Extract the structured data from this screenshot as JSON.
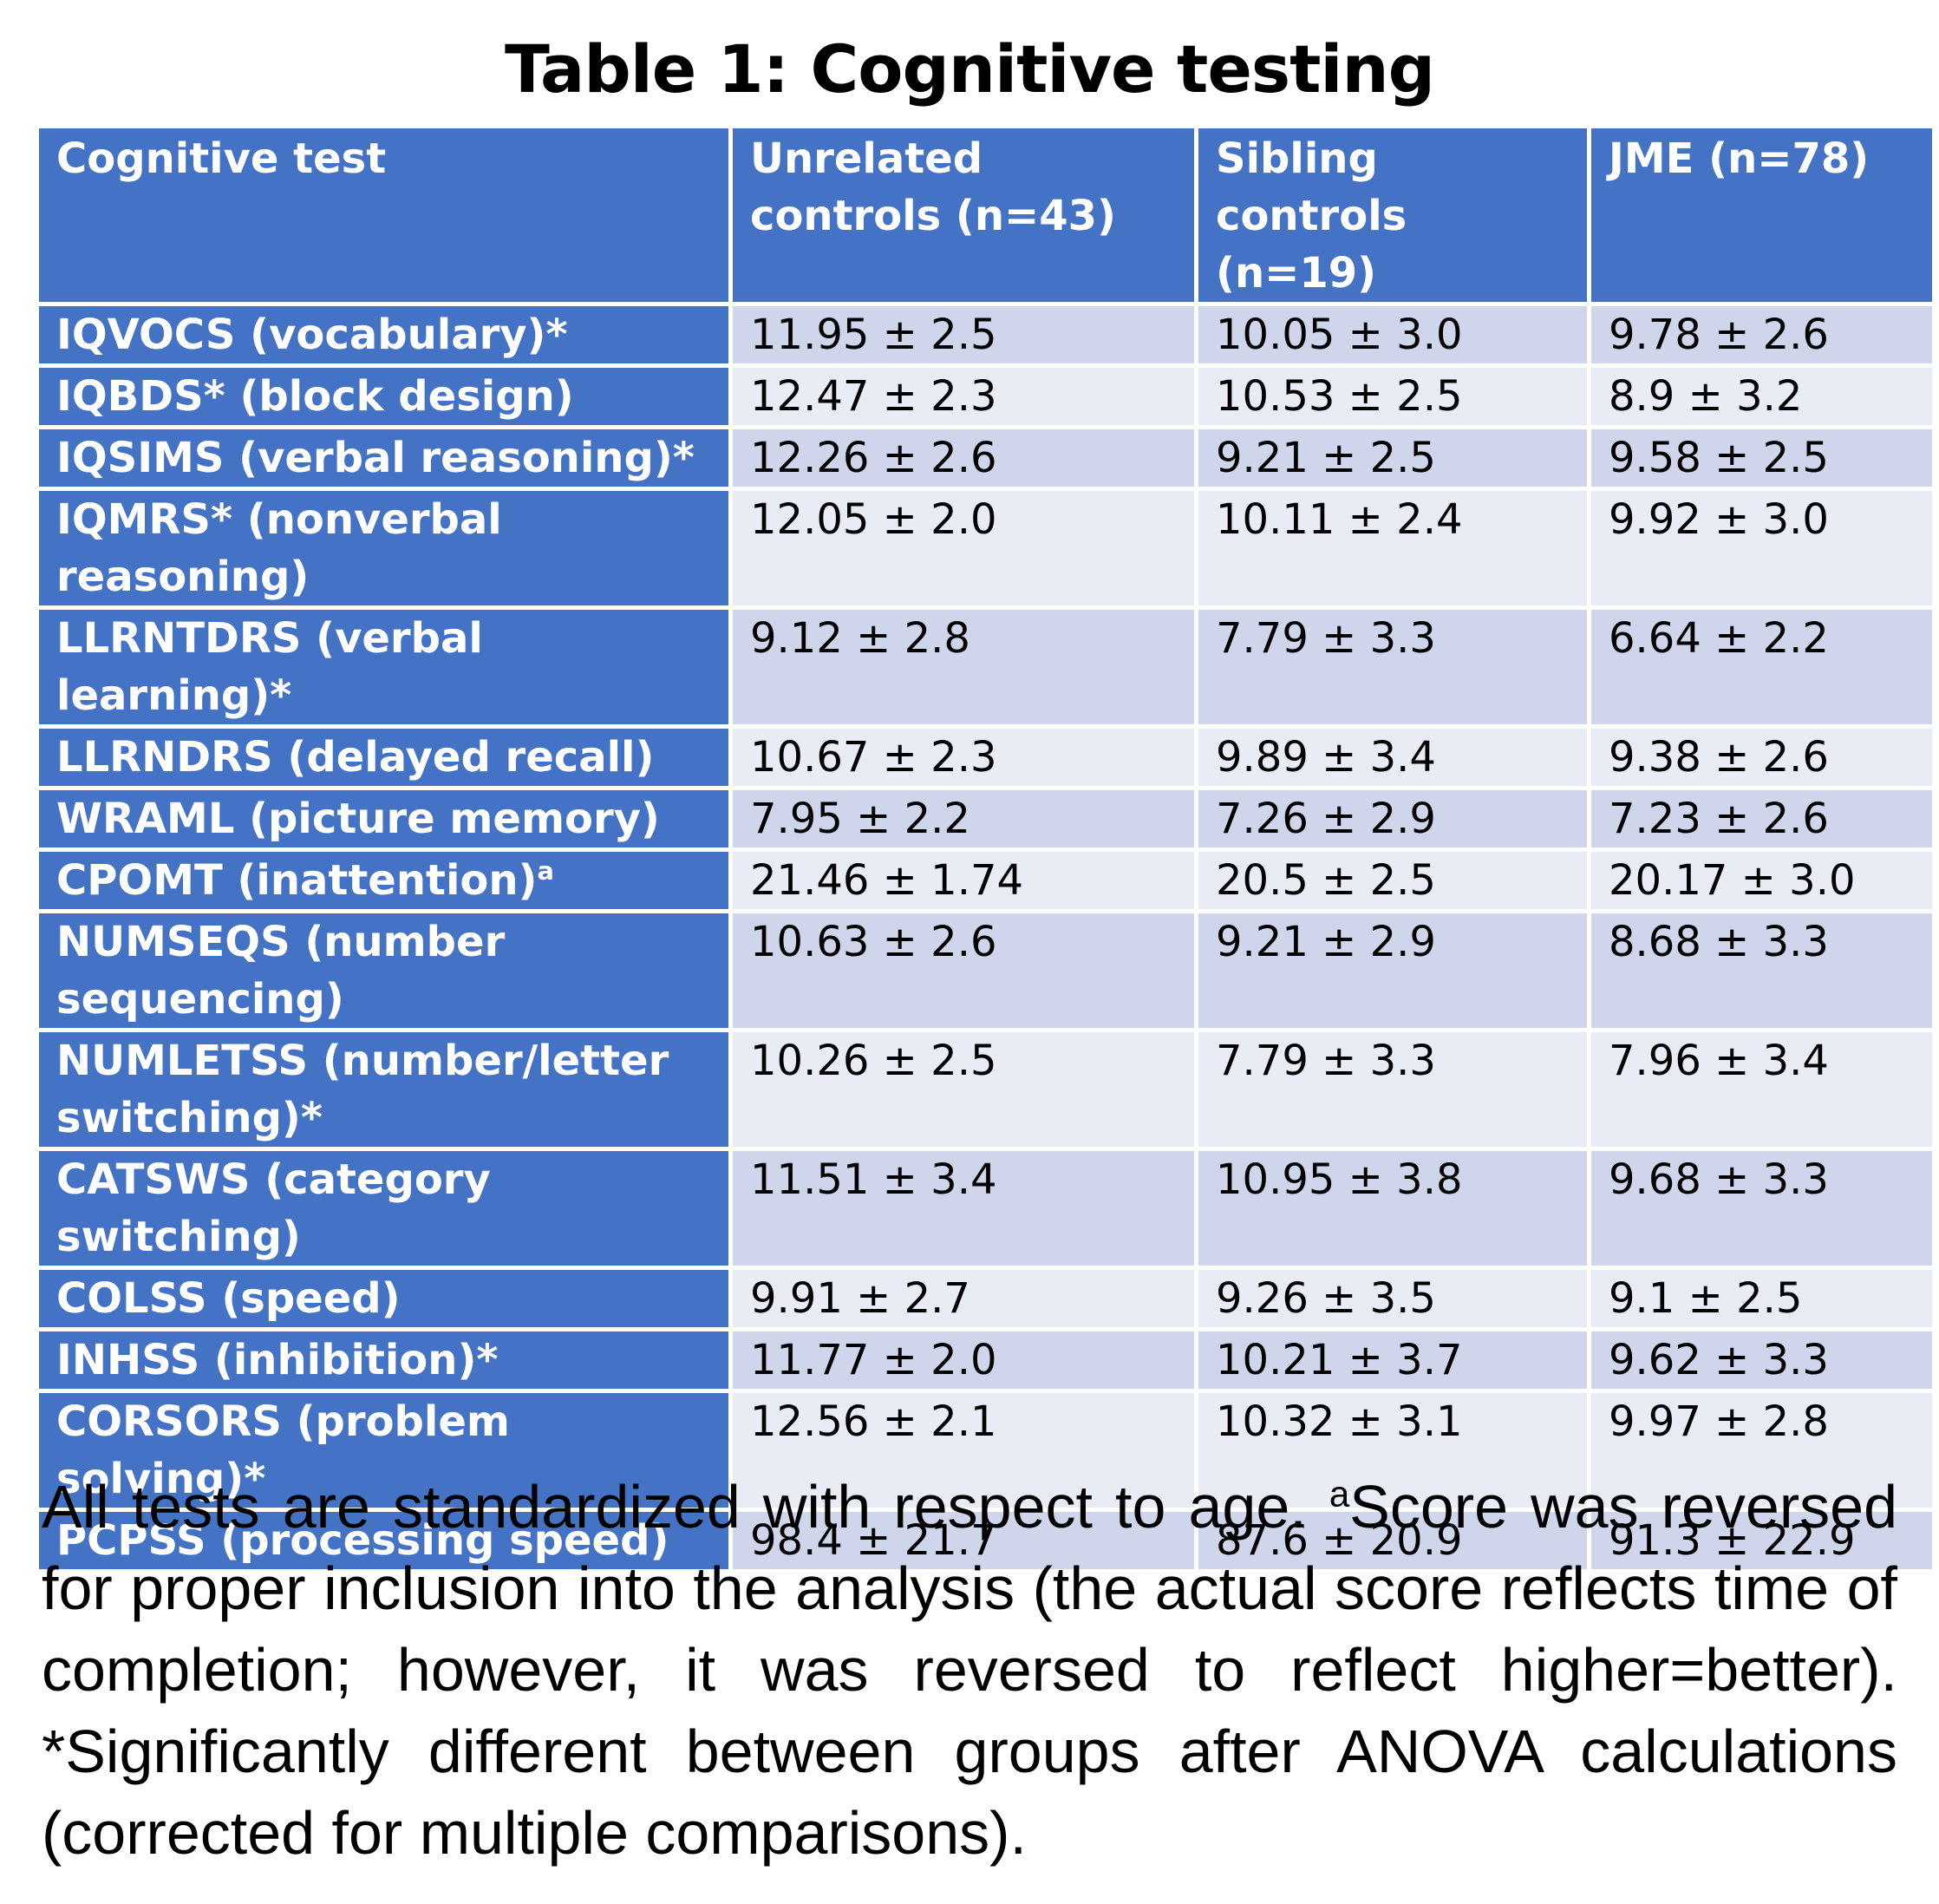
{
  "title": "Table 1: Cognitive testing",
  "columns": [
    "Cognitive test",
    "Unrelated controls (n=43)",
    "Sibling controls (n=19)",
    "JME (n=78)"
  ],
  "rows": [
    {
      "test": "IQVOCS (vocabulary)*",
      "unrelated": "11.95 ± 2.5",
      "sibling": "10.05 ± 3.0",
      "jme": "9.78 ± 2.6"
    },
    {
      "test": "IQBDS* (block design)",
      "unrelated": "12.47 ± 2.3",
      "sibling": "10.53 ± 2.5",
      "jme": "8.9 ± 3.2"
    },
    {
      "test": "IQSIMS (verbal reasoning)*",
      "unrelated": "12.26 ± 2.6",
      "sibling": "9.21 ± 2.5",
      "jme": "9.58 ± 2.5"
    },
    {
      "test": "IQMRS* (nonverbal reasoning)",
      "unrelated": "12.05 ± 2.0",
      "sibling": "10.11 ± 2.4",
      "jme": "9.92 ± 3.0"
    },
    {
      "test": "LLRNTDRS (verbal learning)*",
      "unrelated": "9.12 ± 2.8",
      "sibling": "7.79 ± 3.3",
      "jme": "6.64 ± 2.2"
    },
    {
      "test": "LLRNDRS (delayed recall)",
      "unrelated": "10.67 ± 2.3",
      "sibling": "9.89 ± 3.4",
      "jme": "9.38 ± 2.6"
    },
    {
      "test": "WRAML (picture memory)",
      "unrelated": "7.95 ± 2.2",
      "sibling": "7.26 ± 2.9",
      "jme": "7.23 ± 2.6"
    },
    {
      "test": "CPOMT (inattention)",
      "test_sup": "a",
      "unrelated": "21.46 ± 1.74",
      "sibling": "20.5 ± 2.5",
      "jme": "20.17 ± 3.0"
    },
    {
      "test": "NUMSEQS (number sequencing)",
      "unrelated": "10.63 ± 2.6",
      "sibling": "9.21 ± 2.9",
      "jme": "8.68 ± 3.3"
    },
    {
      "test": "NUMLETSS (number/letter switching)*",
      "unrelated": "10.26 ± 2.5",
      "sibling": "7.79 ± 3.3",
      "jme": "7.96 ± 3.4"
    },
    {
      "test": "CATSWS (category switching)",
      "unrelated": "11.51 ± 3.4",
      "sibling": "10.95 ± 3.8",
      "jme": "9.68 ± 3.3"
    },
    {
      "test": "COLSS (speed)",
      "unrelated": "9.91 ± 2.7",
      "sibling": "9.26 ± 3.5",
      "jme": "9.1 ± 2.5"
    },
    {
      "test": "INHSS (inhibition)*",
      "unrelated": "11.77 ± 2.0",
      "sibling": "10.21 ± 3.7",
      "jme": "9.62 ± 3.3"
    },
    {
      "test": "CORSORS (problem solving)*",
      "unrelated": "12.56 ± 2.1",
      "sibling": "10.32 ± 3.1",
      "jme": "9.97 ± 2.8"
    },
    {
      "test": "PCPSS (processing speed)",
      "unrelated": "98.4 ± 21.7",
      "sibling": "87.6 ± 20.9",
      "jme": "91.3 ± 22.9"
    }
  ],
  "footnote": {
    "part1": "All tests are standardized with respect to age. ",
    "sup": "a",
    "part2": "Score was reversed for proper inclusion into the analysis (the actual score reflects time of completion; however, it was reversed to reflect higher=better). *Significantly different between groups after ANOVA calculations (corrected for multiple comparisons)."
  },
  "colors": {
    "header_bg": "#4472c4",
    "row_odd_bg": "#cfd5ea",
    "row_even_bg": "#e9ebf5",
    "header_text": "#ffffff",
    "body_text": "#000000"
  }
}
